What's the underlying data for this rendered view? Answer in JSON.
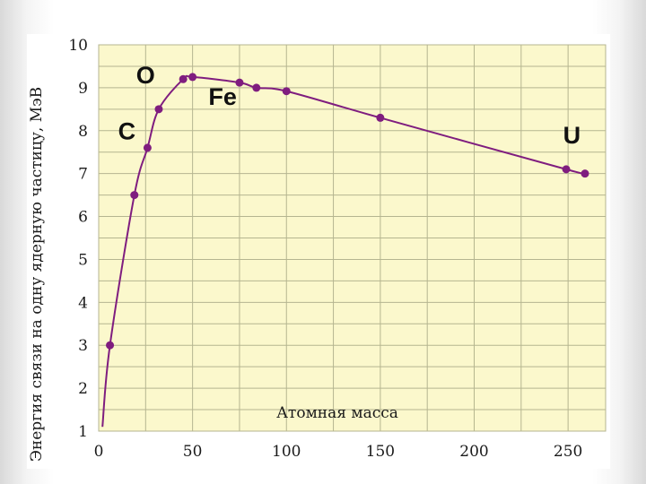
{
  "chart_data": {
    "type": "line",
    "xlabel": "Атомная масса",
    "ylabel": "Энергия связи на одну ядерную частицу, МэВ",
    "xlim": [
      0,
      270
    ],
    "ylim": [
      1,
      10
    ],
    "x_ticks": [
      "0",
      "50",
      "100",
      "150",
      "200",
      "250"
    ],
    "y_ticks": [
      "1",
      "2",
      "3",
      "4",
      "5",
      "6",
      "7",
      "8",
      "9",
      "10"
    ],
    "grid": true,
    "series": [
      {
        "points": [
          {
            "x": 2,
            "y": 1.1
          },
          {
            "x": 6,
            "y": 3.0
          },
          {
            "x": 19,
            "y": 6.5
          },
          {
            "x": 26,
            "y": 7.6
          },
          {
            "x": 32,
            "y": 8.5
          },
          {
            "x": 45,
            "y": 9.2
          },
          {
            "x": 50,
            "y": 9.25
          },
          {
            "x": 75,
            "y": 9.12
          },
          {
            "x": 84,
            "y": 9.0
          },
          {
            "x": 100,
            "y": 8.92
          },
          {
            "x": 150,
            "y": 8.3
          },
          {
            "x": 249,
            "y": 7.1
          },
          {
            "x": 259,
            "y": 7.0
          }
        ]
      }
    ],
    "annotations": [
      {
        "text": "O",
        "x": 25,
        "y": 9.1
      },
      {
        "text": "C",
        "x": 15,
        "y": 7.8
      },
      {
        "text": "Fe",
        "x": 66,
        "y": 8.6
      },
      {
        "text": "U",
        "x": 252,
        "y": 7.7
      }
    ]
  },
  "colors": {
    "plot_background": "#fbf8cc",
    "grid": "#b5b590",
    "line": "#7f1d7f",
    "marker": "#7f1d7f"
  }
}
